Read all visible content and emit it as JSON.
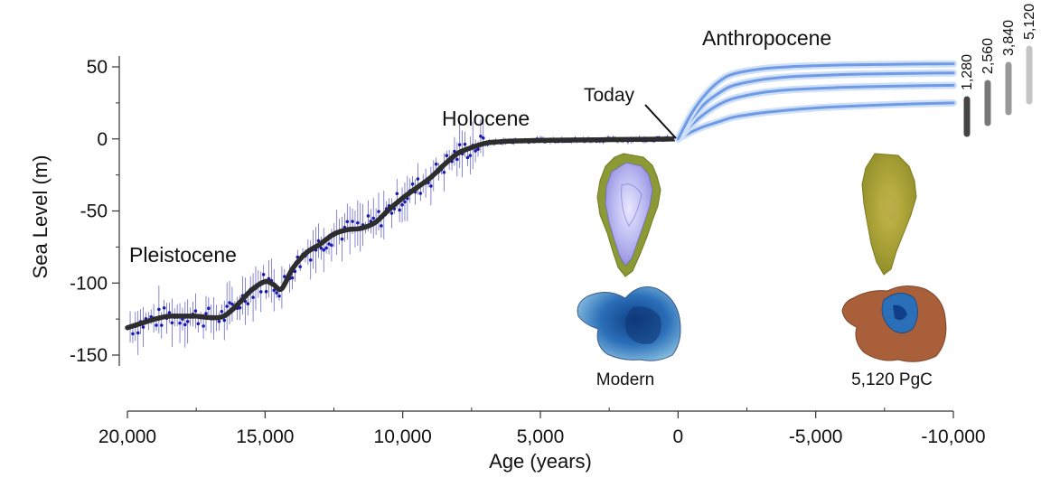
{
  "chart_data": {
    "type": "line",
    "xlabel": "Age (years)",
    "ylabel": "Sea Level (m)",
    "xlim": [
      20000,
      -10000
    ],
    "ylim": [
      -150,
      50
    ],
    "x_ticks": [
      20000,
      15000,
      10000,
      5000,
      0,
      -5000,
      -10000
    ],
    "x_tick_labels": [
      "20,000",
      "15,000",
      "10,000",
      "5,000",
      "0",
      "-5,000",
      "-10,000"
    ],
    "y_ticks": [
      50,
      0,
      -50,
      -100,
      -150
    ],
    "y_tick_labels": [
      "50",
      "0",
      "-50",
      "-100",
      "-150"
    ],
    "era_labels": [
      "Pleistocene",
      "Holocene",
      "Anthropocene"
    ],
    "annotation": "Today",
    "past_curve": {
      "color": "#2d2d2d",
      "x": [
        20000,
        19500,
        19000,
        18500,
        18000,
        17500,
        17000,
        16500,
        16000,
        15500,
        15000,
        14700,
        14400,
        14000,
        13500,
        13000,
        12500,
        12000,
        11500,
        11000,
        10500,
        10000,
        9500,
        9000,
        8500,
        8000,
        7500,
        7000,
        6500,
        6000,
        5000,
        4000,
        3000,
        2000,
        1000,
        0
      ],
      "y": [
        -131,
        -128,
        -125,
        -123,
        -123,
        -123,
        -124,
        -123,
        -115,
        -105,
        -99,
        -101,
        -104,
        -90,
        -79,
        -73,
        -66,
        -63,
        -62,
        -58,
        -49,
        -41,
        -34,
        -27,
        -18,
        -10,
        -6,
        -3,
        -2,
        -1.5,
        -1,
        -0.8,
        -0.6,
        -0.4,
        -0.2,
        0
      ]
    },
    "observations": {
      "color": "#1a1ab0",
      "count_hint": "scattered proxy data points with vertical error bars"
    },
    "series": [
      {
        "name": "1,280",
        "x": [
          0,
          -500,
          -1000,
          -1500,
          -2000,
          -3000,
          -4000,
          -5000,
          -6000,
          -7000,
          -8000,
          -9000,
          -10000
        ],
        "y": [
          0,
          5,
          9,
          12,
          15,
          18,
          20,
          21.5,
          22.5,
          23.3,
          24,
          24.5,
          25
        ]
      },
      {
        "name": "2,560",
        "x": [
          0,
          -500,
          -1000,
          -1500,
          -2000,
          -3000,
          -4000,
          -5000,
          -6000,
          -7000,
          -8000,
          -9000,
          -10000
        ],
        "y": [
          0,
          10,
          18,
          24,
          28,
          32,
          34,
          35,
          35.8,
          36.3,
          36.7,
          37,
          37.2
        ]
      },
      {
        "name": "3,840",
        "x": [
          0,
          -500,
          -1000,
          -1500,
          -2000,
          -3000,
          -4000,
          -5000,
          -6000,
          -7000,
          -8000,
          -9000,
          -10000
        ],
        "y": [
          0,
          14,
          25,
          32,
          37,
          41,
          43,
          44,
          44.7,
          45.1,
          45.4,
          45.6,
          45.8
        ]
      },
      {
        "name": "5,120",
        "x": [
          0,
          -500,
          -1000,
          -1500,
          -2000,
          -3000,
          -4000,
          -5000,
          -6000,
          -7000,
          -8000,
          -9000,
          -10000
        ],
        "y": [
          0,
          18,
          31,
          40,
          45,
          48.5,
          50,
          50.8,
          51.3,
          51.6,
          51.8,
          52,
          52.1
        ]
      }
    ],
    "series_color": "#6f9ae6",
    "legend": {
      "placement": "top-right",
      "entries": [
        "1,280",
        "2,560",
        "3,840",
        "5,120"
      ],
      "colors": [
        "#444444",
        "#777777",
        "#999999",
        "#c4c4c4"
      ]
    },
    "insets": {
      "modern_caption": "Modern",
      "future_caption": "5,120 PgC"
    }
  }
}
